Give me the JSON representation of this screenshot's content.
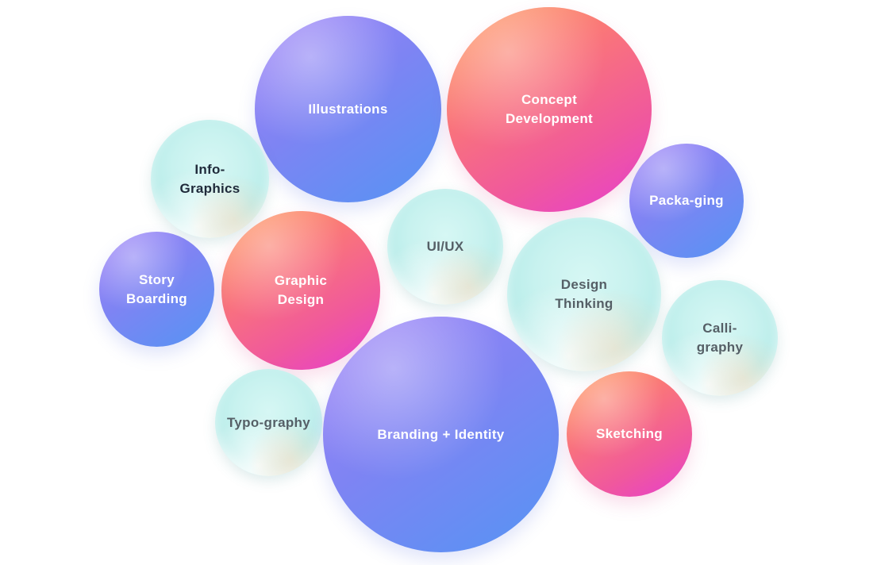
{
  "diagram": {
    "bubbles": [
      {
        "id": "illustrations",
        "lines": [
          "Illustrations"
        ],
        "style": "purple"
      },
      {
        "id": "concept",
        "lines": [
          "Concept",
          "Development"
        ],
        "style": "warm"
      },
      {
        "id": "infographics",
        "lines": [
          "Info-",
          "Graphics"
        ],
        "style": "mint-dark"
      },
      {
        "id": "packaging",
        "lines": [
          "Packa-ging"
        ],
        "style": "purple"
      },
      {
        "id": "uiux",
        "lines": [
          "UI/UX"
        ],
        "style": "mint"
      },
      {
        "id": "graphic",
        "lines": [
          "Graphic",
          "Design"
        ],
        "style": "warm"
      },
      {
        "id": "storyboarding",
        "lines": [
          "Story",
          "Boarding"
        ],
        "style": "purple"
      },
      {
        "id": "design",
        "lines": [
          "Design",
          "Thinking"
        ],
        "style": "mint"
      },
      {
        "id": "calligraphy",
        "lines": [
          "Calli-",
          "graphy"
        ],
        "style": "mint"
      },
      {
        "id": "typography",
        "lines": [
          "Typo-graphy"
        ],
        "style": "mint"
      },
      {
        "id": "branding",
        "lines": [
          "Branding + Identity"
        ],
        "style": "purple"
      },
      {
        "id": "sketching",
        "lines": [
          "Sketching"
        ],
        "style": "warm"
      }
    ]
  },
  "colors": {
    "purple_start": "#a083f7",
    "purple_end": "#5594f3",
    "warm_start": "#ff9a5a",
    "warm_end": "#e63ed0",
    "mint": "#c8f2ef"
  }
}
